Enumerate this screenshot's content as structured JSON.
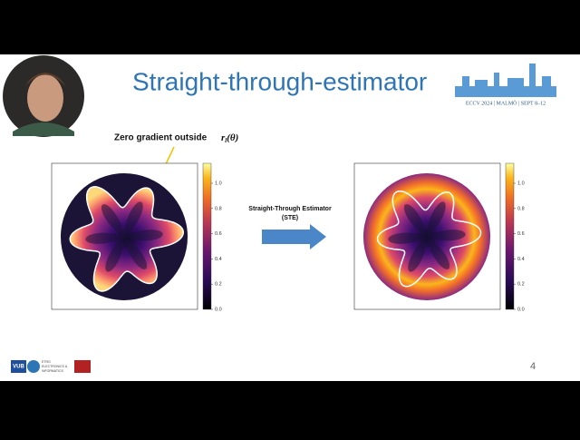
{
  "header": {
    "title": "Straight-through-estimator"
  },
  "logo": {
    "caption": "ECCV 2024 | MALMÖ | SEPT 8–12"
  },
  "annotation": {
    "text": "Zero gradient outside",
    "math_base": "r",
    "math_sub": "l",
    "math_arg": "(θ)"
  },
  "arrow": {
    "label_lines": [
      "Straight-Through Estimator",
      "(STE)"
    ]
  },
  "left_plot": {
    "colorbar_ticks": [
      "0.0",
      "0.2",
      "0.4",
      "0.6",
      "0.8",
      "1.0"
    ]
  },
  "right_plot": {
    "colorbar_ticks": [
      "0.0",
      "0.2",
      "0.4",
      "0.6",
      "0.8",
      "1.0"
    ]
  },
  "footer": {
    "logos": [
      "VUB",
      "ETRO",
      "ELECTRONICS &",
      "INFORMATICS"
    ],
    "page_number": "4"
  }
}
